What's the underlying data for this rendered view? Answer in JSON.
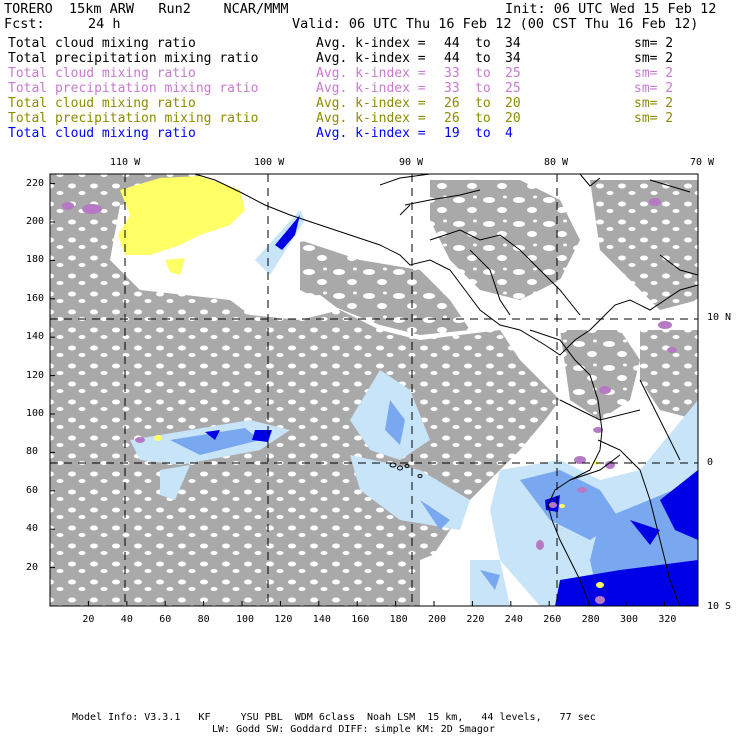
{
  "header": {
    "model": "TORERO  15km ARW   Run2    NCAR/MMM",
    "init": "Init: 06 UTC Wed 15 Feb 12",
    "fcst_label": "Fcst:",
    "fcst_value": "24 h",
    "valid": "Valid: 06 UTC Thu 16 Feb 12 (00 CST Thu 16 Feb 12)"
  },
  "legend": [
    {
      "field": "Total cloud mixing ratio",
      "index": "Avg. k-index =",
      "from": "44",
      "to_word": "to",
      "to": "34",
      "sm": "sm= 2",
      "color": "#000000"
    },
    {
      "field": "Total precipitation mixing ratio",
      "index": "Avg. k-index =",
      "from": "44",
      "to_word": "to",
      "to": "34",
      "sm": "sm= 2",
      "color": "#000000"
    },
    {
      "field": "Total cloud mixing ratio",
      "index": "Avg. k-index =",
      "from": "33",
      "to_word": "to",
      "to": "25",
      "sm": "sm= 2",
      "color": "#c87ad0"
    },
    {
      "field": "Total precipitation mixing ratio",
      "index": "Avg. k-index =",
      "from": "33",
      "to_word": "to",
      "to": "25",
      "sm": "sm= 2",
      "color": "#c87ad0"
    },
    {
      "field": "Total cloud mixing ratio",
      "index": "Avg. k-index =",
      "from": "26",
      "to_word": "to",
      "to": "20",
      "sm": "sm= 2",
      "color": "#8c8c00"
    },
    {
      "field": "Total precipitation mixing ratio",
      "index": "Avg. k-index =",
      "from": "26",
      "to_word": "to",
      "to": "20",
      "sm": "sm= 2",
      "color": "#8c8c00"
    },
    {
      "field": "Total cloud mixing ratio",
      "index": "Avg. k-index =",
      "from": "19",
      "to_word": "to",
      "to": "4",
      "sm": "",
      "color": "#0000ff"
    }
  ],
  "map": {
    "lon_labels": [
      "110 W",
      "100 W",
      "90 W",
      "80 W",
      "70 W"
    ],
    "lat_labels": [
      "10 N",
      "0",
      "10 S"
    ],
    "y_ticks": [
      "220",
      "200",
      "180",
      "160",
      "140",
      "120",
      "100",
      "80",
      "60",
      "40",
      "20"
    ],
    "x_ticks": [
      "20",
      "40",
      "60",
      "80",
      "100",
      "120",
      "140",
      "160",
      "180",
      "200",
      "220",
      "240",
      "260",
      "280",
      "300",
      "320"
    ],
    "colors": {
      "cloud_gray": "#a9a9a9",
      "light_blue": "#c8e4f8",
      "mid_blue": "#7aa8f0",
      "deep_blue": "#0000e6",
      "purple": "#b679c4",
      "yellow": "#ffff66"
    }
  },
  "footer": {
    "line1": "Model Info: V3.3.1   KF     YSU PBL  WDM 6class  Noah LSM  15 km,   44 levels,   77 sec",
    "line2": "LW: Godd SW: Goddard DIFF: simple KM: 2D Smagor"
  }
}
